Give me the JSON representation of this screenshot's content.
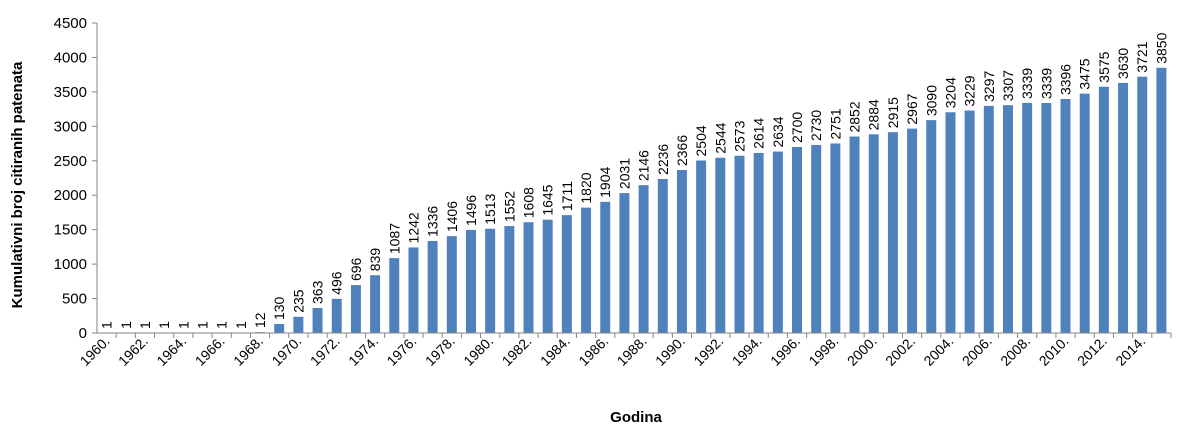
{
  "chart_data": {
    "type": "bar",
    "title": "",
    "xlabel": "Godina",
    "ylabel": "Kumulativni broj citiranih patenata",
    "ylim": [
      0,
      4500
    ],
    "yticks": [
      0,
      500,
      1000,
      1500,
      2000,
      2500,
      3000,
      3500,
      4000,
      4500
    ],
    "categories": [
      "1960.",
      "1961.",
      "1962.",
      "1963.",
      "1964.",
      "1965.",
      "1966.",
      "1967.",
      "1968.",
      "1969.",
      "1970.",
      "1971.",
      "1972.",
      "1973.",
      "1974.",
      "1975.",
      "1976.",
      "1977.",
      "1978.",
      "1979.",
      "1980.",
      "1981.",
      "1982.",
      "1983.",
      "1984.",
      "1985.",
      "1986.",
      "1987.",
      "1988.",
      "1989.",
      "1990.",
      "1991.",
      "1992.",
      "1993.",
      "1994.",
      "1995.",
      "1996.",
      "1997.",
      "1998.",
      "1999.",
      "2000.",
      "2001.",
      "2002.",
      "2003.",
      "2004.",
      "2005.",
      "2006.",
      "2007.",
      "2008.",
      "2009.",
      "2010.",
      "2011.",
      "2012.",
      "2013.",
      "2014.",
      "2015."
    ],
    "shown_x_tick_labels": [
      "1960.",
      "1962.",
      "1964.",
      "1966.",
      "1968.",
      "1970.",
      "1972.",
      "1974.",
      "1976.",
      "1978.",
      "1980.",
      "1982.",
      "1984.",
      "1986.",
      "1988.",
      "1990.",
      "1992.",
      "1994.",
      "1996.",
      "1998.",
      "2000.",
      "2002.",
      "2004.",
      "2006.",
      "2008.",
      "2010.",
      "2012.",
      "2014."
    ],
    "values": [
      1,
      1,
      1,
      1,
      1,
      1,
      1,
      1,
      12,
      130,
      235,
      363,
      496,
      696,
      839,
      1087,
      1242,
      1336,
      1406,
      1496,
      1513,
      1552,
      1608,
      1645,
      1711,
      1820,
      1904,
      2031,
      2146,
      2236,
      2366,
      2504,
      2544,
      2573,
      2614,
      2634,
      2700,
      2730,
      2751,
      2852,
      2884,
      2915,
      2967,
      3090,
      3204,
      3229,
      3297,
      3307,
      3339,
      3339,
      3396,
      3475,
      3575,
      3630,
      3721,
      3850
    ],
    "bar_color": "#4f81bd",
    "grid": false
  }
}
